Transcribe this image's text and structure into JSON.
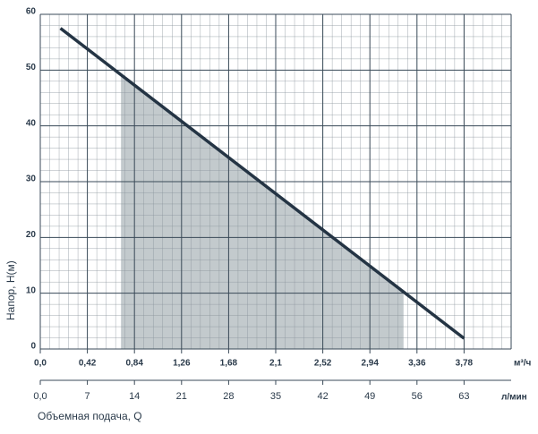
{
  "chart_data": {
    "type": "line",
    "ylabel": "Напор, H(м)",
    "xlabel": "Объемная подача, Q",
    "xunit": "м³/ч",
    "x2unit": "л/мин",
    "xlim": [
      0,
      4.2
    ],
    "xticks": [
      {
        "value": 0,
        "label": "0,0"
      },
      {
        "value": 0.42,
        "label": "0,42"
      },
      {
        "value": 0.84,
        "label": "0,84"
      },
      {
        "value": 1.26,
        "label": "1,26"
      },
      {
        "value": 1.68,
        "label": "1,68"
      },
      {
        "value": 2.1,
        "label": "2,1"
      },
      {
        "value": 2.52,
        "label": "2,52"
      },
      {
        "value": 2.94,
        "label": "2,94"
      },
      {
        "value": 3.36,
        "label": "3,36"
      },
      {
        "value": 3.78,
        "label": "3,78"
      }
    ],
    "x2lim": [
      0,
      70
    ],
    "x2ticks": [
      {
        "value": 0,
        "label": "0,0"
      },
      7,
      14,
      21,
      28,
      35,
      42,
      49,
      56,
      63
    ],
    "ylim": [
      0,
      60
    ],
    "yticks": [
      0,
      10,
      20,
      30,
      40,
      50,
      60
    ],
    "grid": true,
    "minor_divisions": 5,
    "series": [
      {
        "color": "#243444",
        "x": [
          0.18,
          3.78
        ],
        "values": [
          57.5,
          1.9
        ]
      }
    ],
    "shaded_range": {
      "x": [
        0.72,
        3.24
      ],
      "color": "#c3cacd"
    }
  }
}
